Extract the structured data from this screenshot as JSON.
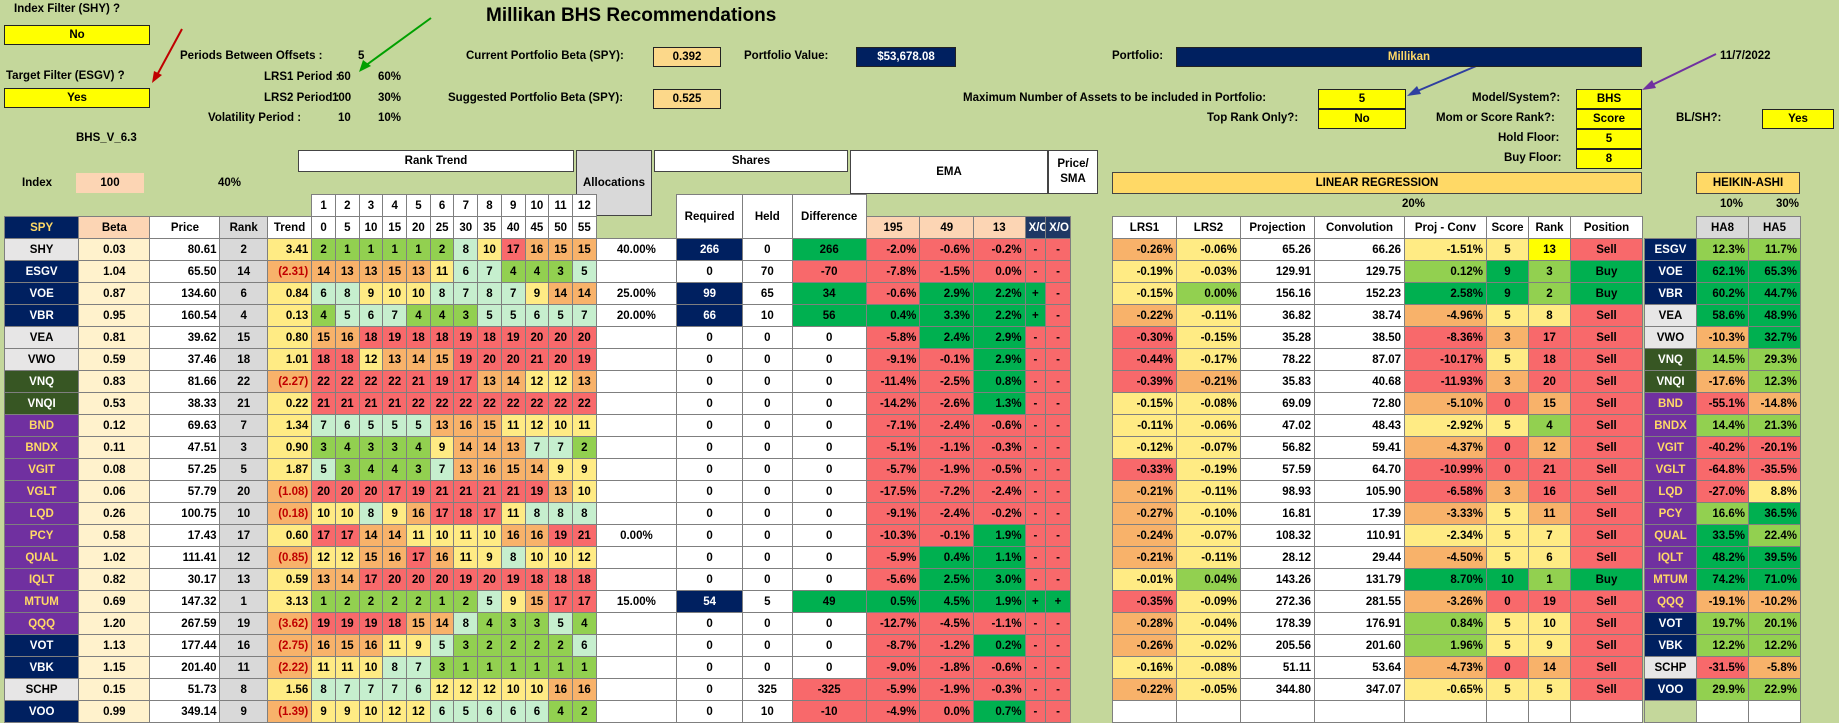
{
  "title": "Millikan BHS Recommendations",
  "index_filter": {
    "label": "Index Filter (SHY) ?",
    "value": "No"
  },
  "target_filter": {
    "label": "Target Filter (ESGV) ?",
    "value": "Yes"
  },
  "version": "BHS_V_6.3",
  "periods": {
    "offsets_label": "Periods Between Offsets :",
    "offsets_value": "5",
    "lrs1_label": "LRS1 Period :",
    "lrs1_value": "60",
    "lrs1_pct": "60%",
    "lrs2_label": "LRS2 Period :",
    "lrs2_value": "100",
    "lrs2_pct": "30%",
    "vol_label": "Volatility Period :",
    "vol_value": "10",
    "vol_pct": "10%"
  },
  "beta": {
    "current_label": "Current Portfolio Beta (SPY):",
    "current_value": "0.392",
    "suggested_label": "Suggested Portfolio Beta (SPY):",
    "suggested_value": "0.525"
  },
  "portfolio_value": {
    "label": "Portfolio Value:",
    "value": "$53,678.08"
  },
  "portfolio": {
    "label": "Portfolio:",
    "value": "Millikan",
    "date": "11/7/2022"
  },
  "settings": {
    "max_assets_label": "Maximum Number of Assets to be included in Portfolio:",
    "max_assets_value": "5",
    "top_rank_label": "Top Rank Only?:",
    "top_rank_value": "No",
    "model_label": "Model/System?:",
    "model_value": "BHS",
    "mom_label": "Mom or Score Rank?:",
    "mom_value": "Score",
    "bl_label": "BL/SH?:",
    "bl_value": "Yes",
    "hold_label": "Hold Floor:",
    "hold_value": "5",
    "buy_label": "Buy Floor:",
    "buy_value": "8"
  },
  "headers": {
    "index": "Index",
    "index_val": "100",
    "pct40": "40%",
    "rank_trend": "Rank Trend",
    "allocations": "Allocations",
    "shares": "Shares",
    "ema": "EMA",
    "price_sma": "Price/ SMA",
    "linreg": "LINEAR REGRESSION",
    "linreg_pct": "20%",
    "heikin": "HEIKIN-ASHI",
    "heikin_p1": "10%",
    "heikin_p2": "30%",
    "spy": "SPY",
    "beta": "Beta",
    "price": "Price",
    "rank": "Rank",
    "trend": "Trend",
    "required": "Required",
    "held": "Held",
    "difference": "Difference",
    "ema_195": "195",
    "ema_49": "49",
    "ema_13": "13",
    "xo1": "X/O",
    "xo2": "X/O",
    "lrs1": "LRS1",
    "lrs2": "LRS2",
    "projection": "Projection",
    "convolution": "Convolution",
    "projconv": "Proj - Conv",
    "score": "Score",
    "rank2": "Rank",
    "position": "Position",
    "ha8": "HA8",
    "ha5": "HA5",
    "rank_nums": [
      "1",
      "2",
      "3",
      "4",
      "5",
      "6",
      "7",
      "8",
      "9",
      "10",
      "11",
      "12"
    ],
    "rank_offsets": [
      "0",
      "5",
      "10",
      "15",
      "20",
      "25",
      "30",
      "35",
      "40",
      "45",
      "50",
      "55"
    ]
  },
  "rows": [
    {
      "t": "SHY",
      "beta": "0.03",
      "price": "80.61",
      "rank": "2",
      "trend": "3.41",
      "rt": [
        "2",
        "1",
        "1",
        "1",
        "1",
        "2",
        "8",
        "10",
        "17",
        "16",
        "15",
        "15"
      ],
      "alloc": "40.00%",
      "req": "266",
      "held": "0",
      "diff": "266",
      "e1": "-2.0%",
      "e2": "-0.6%",
      "e3": "-0.2%",
      "x1": "-",
      "x2": "-",
      "l1": "-0.26%",
      "l2": "-0.06%",
      "proj": "65.26",
      "conv": "66.26",
      "pc": "-1.51%",
      "sc": "5",
      "rk": "13",
      "pos": "Sell",
      "ha8": "12.3%",
      "ha5": "11.7%",
      "tc": "t-lgray",
      "t2": "ESGV",
      "t2c": "t-navy"
    },
    {
      "t": "ESGV",
      "beta": "1.04",
      "price": "65.50",
      "rank": "14",
      "trend": "(2.31)",
      "rt": [
        "14",
        "13",
        "13",
        "15",
        "13",
        "11",
        "6",
        "7",
        "4",
        "4",
        "3",
        "5"
      ],
      "alloc": "",
      "req": "0",
      "held": "70",
      "diff": "-70",
      "e1": "-7.8%",
      "e2": "-1.5%",
      "e3": "0.0%",
      "x1": "-",
      "x2": "-",
      "l1": "-0.19%",
      "l2": "-0.03%",
      "proj": "129.91",
      "conv": "129.75",
      "pc": "0.12%",
      "sc": "9",
      "rk": "3",
      "pos": "Buy",
      "ha8": "62.1%",
      "ha5": "65.3%",
      "tc": "t-navy",
      "t2": "VOE",
      "t2c": "t-navy"
    },
    {
      "t": "VOE",
      "beta": "0.87",
      "price": "134.60",
      "rank": "6",
      "trend": "0.84",
      "rt": [
        "6",
        "8",
        "9",
        "10",
        "10",
        "8",
        "7",
        "8",
        "7",
        "9",
        "14",
        "14"
      ],
      "alloc": "25.00%",
      "req": "99",
      "held": "65",
      "diff": "34",
      "e1": "-0.6%",
      "e2": "2.9%",
      "e3": "2.2%",
      "x1": "+",
      "x2": "-",
      "l1": "-0.15%",
      "l2": "0.00%",
      "proj": "156.16",
      "conv": "152.23",
      "pc": "2.58%",
      "sc": "9",
      "rk": "2",
      "pos": "Buy",
      "ha8": "60.2%",
      "ha5": "44.7%",
      "tc": "t-navy",
      "t2": "VBR",
      "t2c": "t-navy"
    },
    {
      "t": "VBR",
      "beta": "0.95",
      "price": "160.54",
      "rank": "4",
      "trend": "0.13",
      "rt": [
        "4",
        "5",
        "6",
        "7",
        "4",
        "4",
        "3",
        "5",
        "5",
        "6",
        "5",
        "7"
      ],
      "alloc": "20.00%",
      "req": "66",
      "held": "10",
      "diff": "56",
      "e1": "0.4%",
      "e2": "3.3%",
      "e3": "2.2%",
      "x1": "+",
      "x2": "-",
      "l1": "-0.22%",
      "l2": "-0.11%",
      "proj": "36.82",
      "conv": "38.74",
      "pc": "-4.96%",
      "sc": "5",
      "rk": "8",
      "pos": "Sell",
      "ha8": "58.6%",
      "ha5": "48.9%",
      "tc": "t-navy",
      "t2": "VEA",
      "t2c": "t-lgray"
    },
    {
      "t": "VEA",
      "beta": "0.81",
      "price": "39.62",
      "rank": "15",
      "trend": "0.80",
      "rt": [
        "15",
        "16",
        "18",
        "19",
        "18",
        "18",
        "19",
        "18",
        "19",
        "20",
        "20",
        "20"
      ],
      "alloc": "",
      "req": "0",
      "held": "0",
      "diff": "0",
      "e1": "-5.8%",
      "e2": "2.4%",
      "e3": "2.9%",
      "x1": "-",
      "x2": "-",
      "l1": "-0.30%",
      "l2": "-0.15%",
      "proj": "35.28",
      "conv": "38.50",
      "pc": "-8.36%",
      "sc": "3",
      "rk": "17",
      "pos": "Sell",
      "ha8": "-10.3%",
      "ha5": "32.7%",
      "tc": "t-lgray",
      "t2": "VWO",
      "t2c": "t-lgray"
    },
    {
      "t": "VWO",
      "beta": "0.59",
      "price": "37.46",
      "rank": "18",
      "trend": "1.01",
      "rt": [
        "18",
        "18",
        "12",
        "13",
        "14",
        "15",
        "19",
        "20",
        "20",
        "21",
        "20",
        "19"
      ],
      "alloc": "",
      "req": "0",
      "held": "0",
      "diff": "0",
      "e1": "-9.1%",
      "e2": "-0.1%",
      "e3": "2.9%",
      "x1": "-",
      "x2": "-",
      "l1": "-0.44%",
      "l2": "-0.17%",
      "proj": "78.22",
      "conv": "87.07",
      "pc": "-10.17%",
      "sc": "5",
      "rk": "18",
      "pos": "Sell",
      "ha8": "14.5%",
      "ha5": "29.3%",
      "tc": "t-lgray",
      "t2": "VNQ",
      "t2c": "t-green"
    },
    {
      "t": "VNQ",
      "beta": "0.83",
      "price": "81.66",
      "rank": "22",
      "trend": "(2.27)",
      "rt": [
        "22",
        "22",
        "22",
        "22",
        "21",
        "19",
        "17",
        "13",
        "14",
        "12",
        "12",
        "13"
      ],
      "alloc": "",
      "req": "0",
      "held": "0",
      "diff": "0",
      "e1": "-11.4%",
      "e2": "-2.5%",
      "e3": "0.8%",
      "x1": "-",
      "x2": "-",
      "l1": "-0.39%",
      "l2": "-0.21%",
      "proj": "35.83",
      "conv": "40.68",
      "pc": "-11.93%",
      "sc": "3",
      "rk": "20",
      "pos": "Sell",
      "ha8": "-17.6%",
      "ha5": "12.3%",
      "tc": "t-green",
      "t2": "VNQI",
      "t2c": "t-green"
    },
    {
      "t": "VNQI",
      "beta": "0.53",
      "price": "38.33",
      "rank": "21",
      "trend": "0.22",
      "rt": [
        "21",
        "21",
        "21",
        "21",
        "22",
        "22",
        "22",
        "22",
        "22",
        "22",
        "22",
        "22"
      ],
      "alloc": "",
      "req": "0",
      "held": "0",
      "diff": "0",
      "e1": "-14.2%",
      "e2": "-2.6%",
      "e3": "1.3%",
      "x1": "-",
      "x2": "-",
      "l1": "-0.15%",
      "l2": "-0.08%",
      "proj": "69.09",
      "conv": "72.80",
      "pc": "-5.10%",
      "sc": "0",
      "rk": "15",
      "pos": "Sell",
      "ha8": "-55.1%",
      "ha5": "-14.8%",
      "tc": "t-green",
      "t2": "BND",
      "t2c": "t-purple"
    },
    {
      "t": "BND",
      "beta": "0.12",
      "price": "69.63",
      "rank": "7",
      "trend": "1.34",
      "rt": [
        "7",
        "6",
        "5",
        "5",
        "5",
        "13",
        "16",
        "15",
        "11",
        "12",
        "10",
        "11"
      ],
      "alloc": "",
      "req": "0",
      "held": "0",
      "diff": "0",
      "e1": "-7.1%",
      "e2": "-2.4%",
      "e3": "-0.6%",
      "x1": "-",
      "x2": "-",
      "l1": "-0.11%",
      "l2": "-0.06%",
      "proj": "47.02",
      "conv": "48.43",
      "pc": "-2.92%",
      "sc": "5",
      "rk": "4",
      "pos": "Sell",
      "ha8": "14.4%",
      "ha5": "21.3%",
      "tc": "t-purple",
      "t2": "BNDX",
      "t2c": "t-purple"
    },
    {
      "t": "BNDX",
      "beta": "0.11",
      "price": "47.51",
      "rank": "3",
      "trend": "0.90",
      "rt": [
        "3",
        "4",
        "3",
        "3",
        "4",
        "9",
        "14",
        "14",
        "13",
        "7",
        "7",
        "2"
      ],
      "alloc": "",
      "req": "0",
      "held": "0",
      "diff": "0",
      "e1": "-5.1%",
      "e2": "-1.1%",
      "e3": "-0.3%",
      "x1": "-",
      "x2": "-",
      "l1": "-0.12%",
      "l2": "-0.07%",
      "proj": "56.82",
      "conv": "59.41",
      "pc": "-4.37%",
      "sc": "0",
      "rk": "12",
      "pos": "Sell",
      "ha8": "-40.2%",
      "ha5": "-20.1%",
      "tc": "t-purple",
      "t2": "VGIT",
      "t2c": "t-purple"
    },
    {
      "t": "VGIT",
      "beta": "0.08",
      "price": "57.25",
      "rank": "5",
      "trend": "1.87",
      "rt": [
        "5",
        "3",
        "4",
        "4",
        "3",
        "7",
        "13",
        "16",
        "15",
        "14",
        "9",
        "9"
      ],
      "alloc": "",
      "req": "0",
      "held": "0",
      "diff": "0",
      "e1": "-5.7%",
      "e2": "-1.9%",
      "e3": "-0.5%",
      "x1": "-",
      "x2": "-",
      "l1": "-0.33%",
      "l2": "-0.19%",
      "proj": "57.59",
      "conv": "64.70",
      "pc": "-10.99%",
      "sc": "0",
      "rk": "21",
      "pos": "Sell",
      "ha8": "-64.8%",
      "ha5": "-35.5%",
      "tc": "t-purple",
      "t2": "VGLT",
      "t2c": "t-purple"
    },
    {
      "t": "VGLT",
      "beta": "0.06",
      "price": "57.79",
      "rank": "20",
      "trend": "(1.08)",
      "rt": [
        "20",
        "20",
        "20",
        "17",
        "19",
        "21",
        "21",
        "21",
        "21",
        "19",
        "13",
        "10"
      ],
      "alloc": "",
      "req": "0",
      "held": "0",
      "diff": "0",
      "e1": "-17.5%",
      "e2": "-7.2%",
      "e3": "-2.4%",
      "x1": "-",
      "x2": "-",
      "l1": "-0.21%",
      "l2": "-0.11%",
      "proj": "98.93",
      "conv": "105.90",
      "pc": "-6.58%",
      "sc": "3",
      "rk": "16",
      "pos": "Sell",
      "ha8": "-27.0%",
      "ha5": "8.8%",
      "tc": "t-purple",
      "t2": "LQD",
      "t2c": "t-purple"
    },
    {
      "t": "LQD",
      "beta": "0.26",
      "price": "100.75",
      "rank": "10",
      "trend": "(0.18)",
      "rt": [
        "10",
        "10",
        "8",
        "9",
        "16",
        "17",
        "18",
        "17",
        "11",
        "8",
        "8",
        "8"
      ],
      "alloc": "",
      "req": "0",
      "held": "0",
      "diff": "0",
      "e1": "-9.1%",
      "e2": "-2.4%",
      "e3": "-0.2%",
      "x1": "-",
      "x2": "-",
      "l1": "-0.27%",
      "l2": "-0.10%",
      "proj": "16.81",
      "conv": "17.39",
      "pc": "-3.33%",
      "sc": "5",
      "rk": "11",
      "pos": "Sell",
      "ha8": "16.6%",
      "ha5": "36.5%",
      "tc": "t-purple",
      "t2": "PCY",
      "t2c": "t-purple"
    },
    {
      "t": "PCY",
      "beta": "0.58",
      "price": "17.43",
      "rank": "17",
      "trend": "0.60",
      "rt": [
        "17",
        "17",
        "14",
        "14",
        "11",
        "10",
        "11",
        "10",
        "16",
        "16",
        "19",
        "21"
      ],
      "alloc": "0.00%",
      "req": "0",
      "held": "0",
      "diff": "0",
      "e1": "-10.3%",
      "e2": "-0.1%",
      "e3": "1.9%",
      "x1": "-",
      "x2": "-",
      "l1": "-0.24%",
      "l2": "-0.07%",
      "proj": "108.32",
      "conv": "110.91",
      "pc": "-2.34%",
      "sc": "5",
      "rk": "7",
      "pos": "Sell",
      "ha8": "33.5%",
      "ha5": "22.4%",
      "tc": "t-purple",
      "t2": "QUAL",
      "t2c": "t-purple"
    },
    {
      "t": "QUAL",
      "beta": "1.02",
      "price": "111.41",
      "rank": "12",
      "trend": "(0.85)",
      "rt": [
        "12",
        "12",
        "15",
        "16",
        "17",
        "16",
        "11",
        "9",
        "8",
        "10",
        "10",
        "12"
      ],
      "alloc": "",
      "req": "0",
      "held": "0",
      "diff": "0",
      "e1": "-5.9%",
      "e2": "0.4%",
      "e3": "1.1%",
      "x1": "-",
      "x2": "-",
      "l1": "-0.21%",
      "l2": "-0.11%",
      "proj": "28.12",
      "conv": "29.44",
      "pc": "-4.50%",
      "sc": "5",
      "rk": "6",
      "pos": "Sell",
      "ha8": "48.2%",
      "ha5": "39.5%",
      "tc": "t-purple",
      "t2": "IQLT",
      "t2c": "t-purple"
    },
    {
      "t": "IQLT",
      "beta": "0.82",
      "price": "30.17",
      "rank": "13",
      "trend": "0.59",
      "rt": [
        "13",
        "14",
        "17",
        "20",
        "20",
        "20",
        "19",
        "20",
        "19",
        "18",
        "18",
        "18"
      ],
      "alloc": "",
      "req": "0",
      "held": "0",
      "diff": "0",
      "e1": "-5.6%",
      "e2": "2.5%",
      "e3": "3.0%",
      "x1": "-",
      "x2": "-",
      "l1": "-0.01%",
      "l2": "0.04%",
      "proj": "143.26",
      "conv": "131.79",
      "pc": "8.70%",
      "sc": "10",
      "rk": "1",
      "pos": "Buy",
      "ha8": "74.2%",
      "ha5": "71.0%",
      "tc": "t-purple",
      "t2": "MTUM",
      "t2c": "t-purple"
    },
    {
      "t": "MTUM",
      "beta": "0.69",
      "price": "147.32",
      "rank": "1",
      "trend": "3.13",
      "rt": [
        "1",
        "2",
        "2",
        "2",
        "2",
        "1",
        "2",
        "5",
        "9",
        "15",
        "17",
        "17"
      ],
      "alloc": "15.00%",
      "req": "54",
      "held": "5",
      "diff": "49",
      "e1": "0.5%",
      "e2": "4.5%",
      "e3": "1.9%",
      "x1": "+",
      "x2": "+",
      "l1": "-0.35%",
      "l2": "-0.09%",
      "proj": "272.36",
      "conv": "281.55",
      "pc": "-3.26%",
      "sc": "0",
      "rk": "19",
      "pos": "Sell",
      "ha8": "-19.1%",
      "ha5": "-10.2%",
      "tc": "t-purple",
      "t2": "QQQ",
      "t2c": "t-purple"
    },
    {
      "t": "QQQ",
      "beta": "1.20",
      "price": "267.59",
      "rank": "19",
      "trend": "(3.62)",
      "rt": [
        "19",
        "19",
        "19",
        "18",
        "15",
        "14",
        "8",
        "4",
        "3",
        "3",
        "5",
        "4"
      ],
      "alloc": "",
      "req": "0",
      "held": "0",
      "diff": "0",
      "e1": "-12.7%",
      "e2": "-4.5%",
      "e3": "-1.1%",
      "x1": "-",
      "x2": "-",
      "l1": "-0.28%",
      "l2": "-0.04%",
      "proj": "178.39",
      "conv": "176.91",
      "pc": "0.84%",
      "sc": "5",
      "rk": "10",
      "pos": "Sell",
      "ha8": "19.7%",
      "ha5": "20.1%",
      "tc": "t-purple",
      "t2": "VOT",
      "t2c": "t-navy"
    },
    {
      "t": "VOT",
      "beta": "1.13",
      "price": "177.44",
      "rank": "16",
      "trend": "(2.75)",
      "rt": [
        "16",
        "15",
        "16",
        "11",
        "9",
        "5",
        "3",
        "2",
        "2",
        "2",
        "2",
        "6"
      ],
      "alloc": "",
      "req": "0",
      "held": "0",
      "diff": "0",
      "e1": "-8.7%",
      "e2": "-1.2%",
      "e3": "0.2%",
      "x1": "-",
      "x2": "-",
      "l1": "-0.26%",
      "l2": "-0.02%",
      "proj": "205.56",
      "conv": "201.60",
      "pc": "1.96%",
      "sc": "5",
      "rk": "9",
      "pos": "Sell",
      "ha8": "12.2%",
      "ha5": "12.2%",
      "tc": "t-navy",
      "t2": "VBK",
      "t2c": "t-navy"
    },
    {
      "t": "VBK",
      "beta": "1.15",
      "price": "201.40",
      "rank": "11",
      "trend": "(2.22)",
      "rt": [
        "11",
        "11",
        "10",
        "8",
        "7",
        "3",
        "1",
        "1",
        "1",
        "1",
        "1",
        "1"
      ],
      "alloc": "",
      "req": "0",
      "held": "0",
      "diff": "0",
      "e1": "-9.0%",
      "e2": "-1.8%",
      "e3": "-0.6%",
      "x1": "-",
      "x2": "-",
      "l1": "-0.16%",
      "l2": "-0.08%",
      "proj": "51.11",
      "conv": "53.64",
      "pc": "-4.73%",
      "sc": "0",
      "rk": "14",
      "pos": "Sell",
      "ha8": "-31.5%",
      "ha5": "-5.8%",
      "tc": "t-navy",
      "t2": "SCHP",
      "t2c": "t-lgray"
    },
    {
      "t": "SCHP",
      "beta": "0.15",
      "price": "51.73",
      "rank": "8",
      "trend": "1.56",
      "rt": [
        "8",
        "7",
        "7",
        "7",
        "6",
        "12",
        "12",
        "12",
        "10",
        "10",
        "16",
        "16"
      ],
      "alloc": "",
      "req": "0",
      "held": "325",
      "diff": "-325",
      "e1": "-5.9%",
      "e2": "-1.9%",
      "e3": "-0.3%",
      "x1": "-",
      "x2": "-",
      "l1": "-0.22%",
      "l2": "-0.05%",
      "proj": "344.80",
      "conv": "347.07",
      "pc": "-0.65%",
      "sc": "5",
      "rk": "5",
      "pos": "Sell",
      "ha8": "29.9%",
      "ha5": "22.9%",
      "tc": "t-lgray",
      "t2": "VOO",
      "t2c": "t-navy"
    },
    {
      "t": "VOO",
      "beta": "0.99",
      "price": "349.14",
      "rank": "9",
      "trend": "(1.39)",
      "rt": [
        "9",
        "9",
        "10",
        "12",
        "12",
        "6",
        "5",
        "6",
        "6",
        "6",
        "4",
        "2"
      ],
      "alloc": "",
      "req": "0",
      "held": "10",
      "diff": "-10",
      "e1": "-4.9%",
      "e2": "0.0%",
      "e3": "0.7%",
      "x1": "-",
      "x2": "-",
      "l1": "",
      "l2": "",
      "proj": "",
      "conv": "",
      "pc": "",
      "sc": "",
      "rk": "",
      "pos": "",
      "ha8": "",
      "ha5": "",
      "tc": "t-navy",
      "t2": "",
      "t2c": ""
    }
  ]
}
